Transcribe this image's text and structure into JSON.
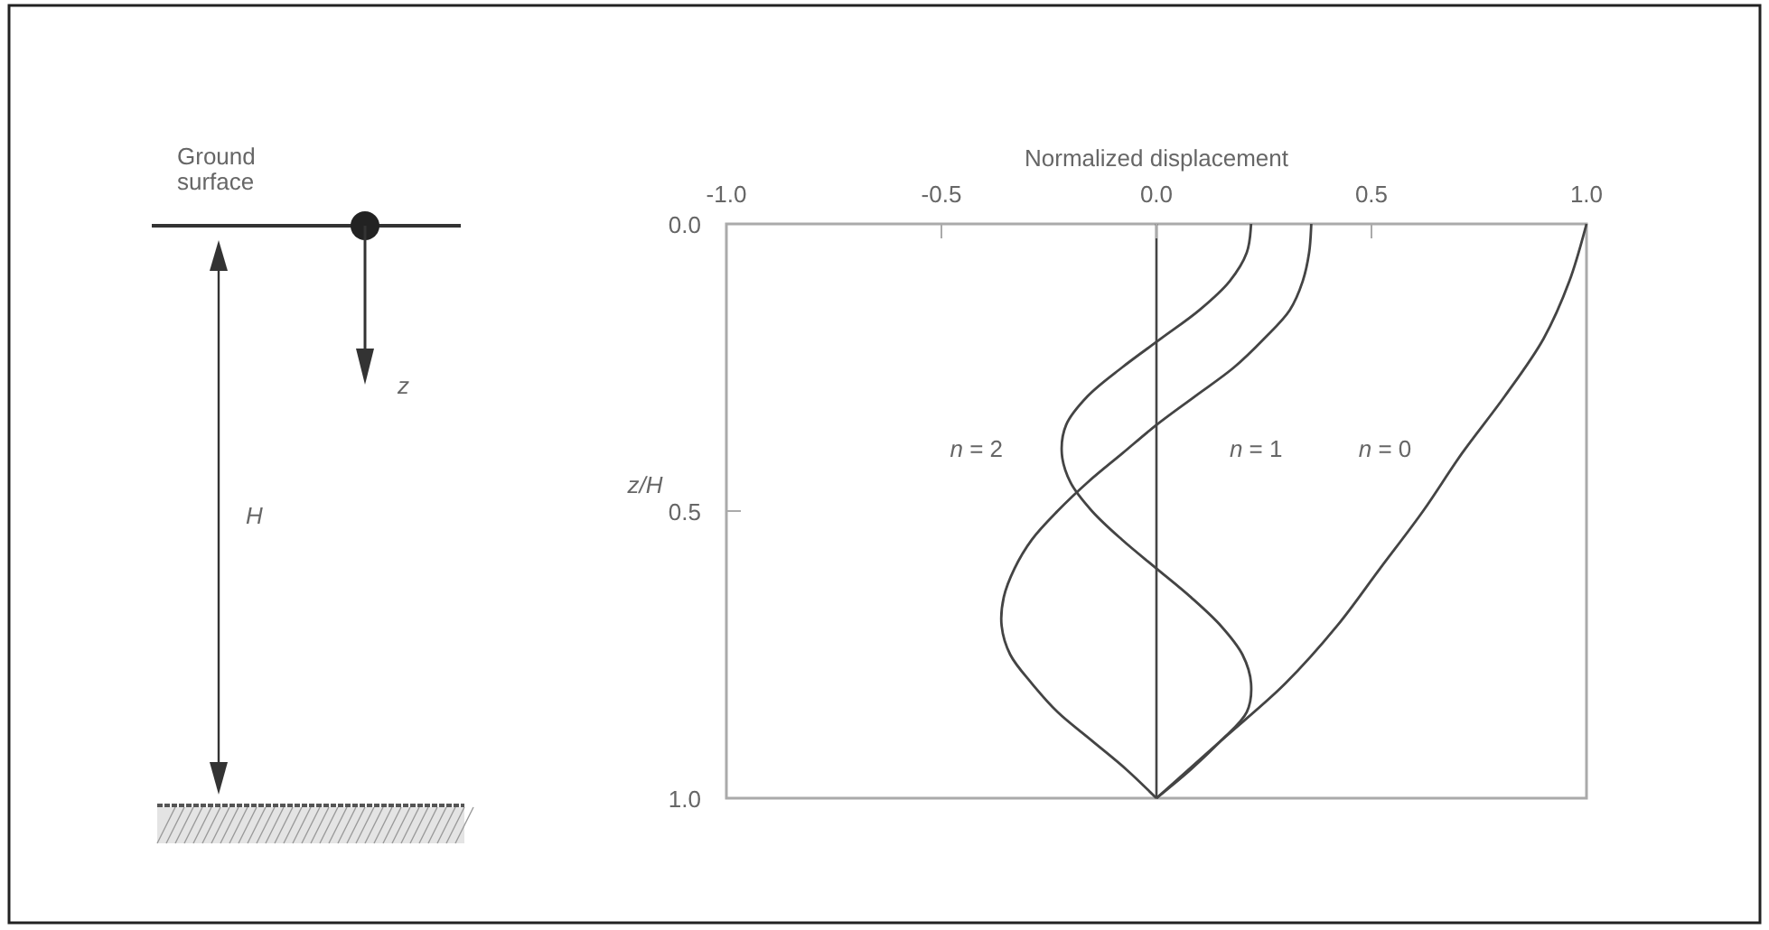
{
  "chart_data": {
    "type": "line",
    "xlabel": "Normalized displacement",
    "ylabel": "z/H",
    "xlim": [
      -1,
      1
    ],
    "xticks": [
      {
        "value": -1,
        "label": "-1.0"
      },
      {
        "value": -0.5,
        "label": "-0.5"
      },
      {
        "value": 0,
        "label": "0.0"
      },
      {
        "value": 0.5,
        "label": "0.5"
      },
      {
        "value": 1,
        "label": "1.0"
      }
    ],
    "ylim": [
      1,
      0
    ],
    "yticks": [
      {
        "value": 0,
        "label": "0.0"
      },
      {
        "value": 0.5,
        "label": "0.5"
      },
      {
        "value": 1,
        "label": "1.0"
      }
    ],
    "grid": false,
    "marker": "none",
    "line_style": "solid",
    "ref_lines": [
      {
        "axis": "x",
        "value": 0,
        "color": "#444444"
      }
    ],
    "series": [
      {
        "name": "n = 0",
        "color": "#444444",
        "x": [
          1.0,
          0.96,
          0.9,
          0.81,
          0.71,
          0.62,
          0.52,
          0.42,
          0.3,
          0.15,
          0
        ],
        "values": [
          0,
          0.1,
          0.2,
          0.3,
          0.4,
          0.5,
          0.6,
          0.7,
          0.8,
          0.9,
          1
        ]
      },
      {
        "name": "n = 1",
        "color": "#444444",
        "x": [
          0.36,
          0.355,
          0.34,
          0.31,
          0.25,
          0.18,
          0.09,
          0,
          -0.08,
          -0.16,
          -0.23,
          -0.29,
          -0.33,
          -0.355,
          -0.36,
          -0.34,
          -0.29,
          -0.23,
          -0.15,
          -0.07,
          0
        ],
        "values": [
          0,
          0.05,
          0.1,
          0.15,
          0.2,
          0.25,
          0.3,
          0.35,
          0.4,
          0.45,
          0.5,
          0.55,
          0.6,
          0.65,
          0.7,
          0.75,
          0.8,
          0.85,
          0.9,
          0.95,
          1
        ]
      },
      {
        "name": "n = 2",
        "color": "#444444",
        "x": [
          0.22,
          0.21,
          0.17,
          0.1,
          0.01,
          -0.08,
          -0.16,
          -0.21,
          -0.22,
          -0.2,
          -0.15,
          -0.08,
          0,
          0.08,
          0.15,
          0.2,
          0.22,
          0.21,
          0.15,
          0.08,
          0
        ],
        "values": [
          0,
          0.05,
          0.1,
          0.15,
          0.2,
          0.25,
          0.3,
          0.35,
          0.4,
          0.45,
          0.5,
          0.55,
          0.6,
          0.65,
          0.7,
          0.75,
          0.8,
          0.85,
          0.9,
          0.95,
          1
        ]
      }
    ],
    "annotations": [
      "Ground surface",
      "z",
      "H"
    ]
  }
}
